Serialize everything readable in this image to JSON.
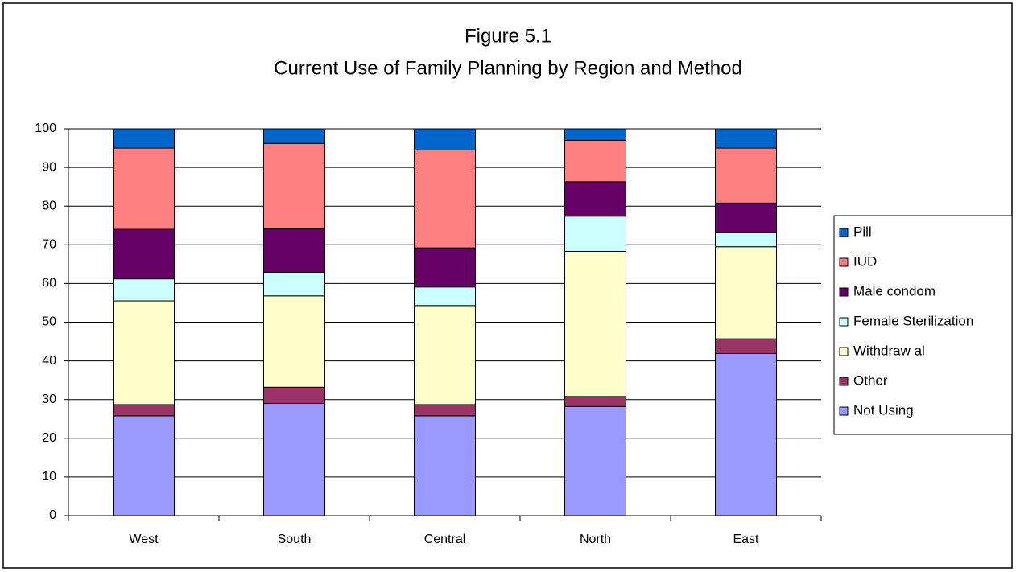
{
  "chart_data": {
    "type": "stacked_bar",
    "title": "Figure 5.1",
    "subtitle": "Current Use of Family Planning by Region and Method",
    "categories": [
      "West",
      "South",
      "Central",
      "North",
      "East"
    ],
    "series": [
      {
        "name": "Not Using",
        "color": "#9999ff",
        "values": [
          25.8,
          29,
          25.8,
          28.2,
          41.9
        ]
      },
      {
        "name": "Other",
        "color": "#993366",
        "values": [
          2.9,
          4.2,
          2.9,
          2.6,
          3.8
        ]
      },
      {
        "name": "Withdraw al",
        "color": "#ffffcc",
        "values": [
          26.8,
          23.6,
          25.6,
          37.5,
          23.8
        ]
      },
      {
        "name": "Female Sterilization",
        "color": "#ccffff",
        "values": [
          5.7,
          6.1,
          4.8,
          9.1,
          3.7
        ]
      },
      {
        "name": "Male condom",
        "color": "#660066",
        "values": [
          12.8,
          11.2,
          10.1,
          8.9,
          7.6
        ]
      },
      {
        "name": "IUD",
        "color": "#ff8080",
        "values": [
          21,
          22.1,
          25.3,
          10.7,
          14.2
        ]
      },
      {
        "name": "Pill",
        "color": "#0066cc",
        "values": [
          5,
          3.8,
          5.5,
          3,
          5
        ]
      }
    ],
    "ylim": [
      0,
      100
    ],
    "yticks": [
      0,
      10,
      20,
      30,
      40,
      50,
      60,
      70,
      80,
      90,
      100
    ],
    "grid": true,
    "legend": "right"
  }
}
